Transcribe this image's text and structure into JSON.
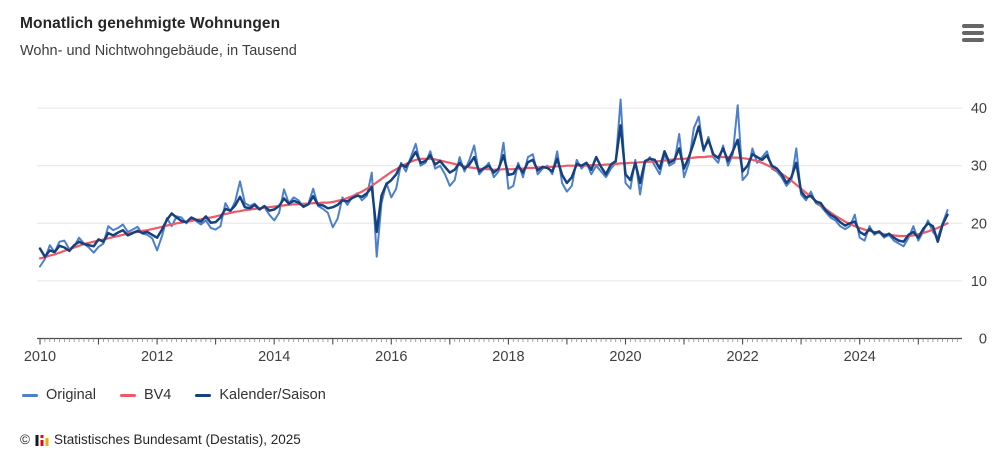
{
  "header": {
    "title": "Monatlich genehmigte Wohnungen",
    "subtitle": "Wohn- und Nichtwohngebäude, in Tausend"
  },
  "menu": {
    "icon": "hamburger-menu-icon",
    "tooltip": "Chart context menu"
  },
  "footer": {
    "copyright": "©",
    "credit": "Statistisches Bundesamt (Destatis), 2025",
    "logo_colors": {
      "black": "#1a1a1a",
      "red": "#e30613",
      "gold": "#f0ab00"
    }
  },
  "colors": {
    "grid": "#e6e6e6",
    "axis": "#4d4d4d",
    "tick_minor": "#8c8c8c",
    "label": "#404040"
  },
  "chart_data": {
    "type": "line",
    "title": "Monatlich genehmigte Wohnungen",
    "subtitle": "Wohn- und Nichtwohngebäude, in Tausend",
    "x_unit": "month",
    "x_start": "2010-01",
    "x_end": "2025-07",
    "x_tick_labels": [
      "2010",
      "2012",
      "2014",
      "2016",
      "2018",
      "2020",
      "2022",
      "2024"
    ],
    "yticks": [
      0,
      10,
      20,
      30,
      40
    ],
    "ylim": [
      0,
      43
    ],
    "grid": true,
    "legend_position": "bottom-left",
    "y_axis_side": "right",
    "series": [
      {
        "name": "Original",
        "color": "#4d80cc",
        "values": [
          12.5,
          13.8,
          16.2,
          15.0,
          16.8,
          17.0,
          15.5,
          16.0,
          17.5,
          16.5,
          15.8,
          14.9,
          15.9,
          16.5,
          19.5,
          18.8,
          19.2,
          19.8,
          18.5,
          18.9,
          19.4,
          18.2,
          18.0,
          17.4,
          15.3,
          17.8,
          20.9,
          19.5,
          21.2,
          21.0,
          20.0,
          20.8,
          20.4,
          19.8,
          20.5,
          19.2,
          18.9,
          19.5,
          23.5,
          22.0,
          23.8,
          27.3,
          23.5,
          23.0,
          23.4,
          22.5,
          22.8,
          21.5,
          20.5,
          21.8,
          25.9,
          23.5,
          24.5,
          24.0,
          22.8,
          23.4,
          26.0,
          23.0,
          22.5,
          21.8,
          19.3,
          20.8,
          24.5,
          23.2,
          24.6,
          25.2,
          24.0,
          24.8,
          28.8,
          14.2,
          23.5,
          27.0,
          24.5,
          26.0,
          30.5,
          29.0,
          31.5,
          33.8,
          30.0,
          30.5,
          32.5,
          29.5,
          30.0,
          28.5,
          26.5,
          27.5,
          31.5,
          29.0,
          31.0,
          33.5,
          28.5,
          29.5,
          30.5,
          28.0,
          29.0,
          34.0,
          26.0,
          26.5,
          30.5,
          28.0,
          31.5,
          32.0,
          28.5,
          29.5,
          30.0,
          28.5,
          32.5,
          27.0,
          25.5,
          26.5,
          31.0,
          29.5,
          30.5,
          28.5,
          30.0,
          29.0,
          28.0,
          29.5,
          30.5,
          41.5,
          27.0,
          26.0,
          31.0,
          25.0,
          30.5,
          31.5,
          30.0,
          28.5,
          32.0,
          30.0,
          30.5,
          35.5,
          28.0,
          30.5,
          36.5,
          38.5,
          32.5,
          35.0,
          31.5,
          30.5,
          33.5,
          30.0,
          32.0,
          40.5,
          27.5,
          28.5,
          33.0,
          30.5,
          31.5,
          32.5,
          29.5,
          29.0,
          28.0,
          26.5,
          27.5,
          33.0,
          25.0,
          24.0,
          25.5,
          23.5,
          23.0,
          22.0,
          21.0,
          20.5,
          19.5,
          19.0,
          19.5,
          21.5,
          17.5,
          17.0,
          19.5,
          18.0,
          18.5,
          17.5,
          18.0,
          17.0,
          16.5,
          16.0,
          17.5,
          19.5,
          17.0,
          18.5,
          20.5,
          18.5,
          17.5,
          20.0,
          22.3
        ]
      },
      {
        "name": "BV4",
        "color": "#ee5a67",
        "values": [
          13.9,
          14.1,
          14.4,
          14.6,
          14.9,
          15.2,
          15.5,
          15.8,
          16.1,
          16.4,
          16.6,
          16.8,
          17.0,
          17.2,
          17.4,
          17.6,
          17.8,
          18.0,
          18.2,
          18.4,
          18.5,
          18.7,
          18.8,
          19.0,
          19.2,
          19.4,
          19.6,
          19.8,
          20.0,
          20.1,
          20.3,
          20.4,
          20.6,
          20.7,
          20.9,
          21.0,
          21.2,
          21.4,
          21.6,
          21.8,
          22.0,
          22.1,
          22.3,
          22.4,
          22.5,
          22.6,
          22.7,
          22.8,
          22.9,
          23.0,
          23.1,
          23.2,
          23.3,
          23.3,
          23.4,
          23.4,
          23.5,
          23.5,
          23.6,
          23.6,
          23.7,
          23.9,
          24.1,
          24.4,
          24.7,
          25.1,
          25.5,
          26.0,
          26.5,
          27.1,
          27.7,
          28.3,
          28.9,
          29.4,
          29.9,
          30.3,
          30.7,
          31.0,
          31.2,
          31.2,
          31.2,
          31.1,
          30.9,
          30.7,
          30.5,
          30.3,
          30.1,
          29.9,
          29.7,
          29.6,
          29.5,
          29.4,
          29.4,
          29.3,
          29.3,
          29.4,
          29.4,
          29.4,
          29.5,
          29.5,
          29.6,
          29.6,
          29.7,
          29.7,
          29.8,
          29.8,
          29.9,
          29.9,
          30.0,
          30.0,
          30.0,
          30.0,
          30.0,
          30.1,
          30.1,
          30.1,
          30.2,
          30.2,
          30.3,
          30.4,
          30.4,
          30.5,
          30.5,
          30.6,
          30.6,
          30.7,
          30.7,
          30.8,
          30.9,
          31.0,
          31.1,
          31.2,
          31.2,
          31.3,
          31.4,
          31.5,
          31.5,
          31.6,
          31.6,
          31.6,
          31.5,
          31.5,
          31.4,
          31.4,
          31.3,
          31.2,
          31.0,
          30.8,
          30.5,
          30.1,
          29.7,
          29.2,
          28.6,
          28.0,
          27.4,
          26.7,
          26.0,
          25.3,
          24.6,
          23.9,
          23.2,
          22.5,
          21.9,
          21.3,
          20.8,
          20.3,
          19.9,
          19.5,
          19.2,
          18.9,
          18.7,
          18.5,
          18.3,
          18.1,
          18.0,
          17.9,
          17.8,
          17.8,
          17.8,
          17.9,
          18.1,
          18.3,
          18.6,
          18.9,
          19.2,
          19.6,
          20.0
        ]
      },
      {
        "name": "Kalender/Saison",
        "color": "#15417e",
        "values": [
          15.6,
          14.2,
          15.3,
          15.0,
          16.1,
          15.8,
          15.2,
          16.2,
          16.8,
          16.4,
          16.2,
          16.0,
          17.2,
          16.8,
          18.3,
          17.9,
          18.4,
          18.8,
          17.9,
          18.3,
          18.7,
          18.3,
          18.5,
          18.0,
          17.5,
          18.9,
          20.6,
          21.7,
          21.0,
          20.4,
          20.2,
          21.0,
          20.6,
          20.3,
          21.2,
          20.1,
          20.2,
          21.0,
          22.5,
          22.2,
          23.1,
          24.6,
          22.8,
          22.6,
          23.2,
          22.4,
          23.0,
          22.2,
          22.4,
          23.0,
          24.3,
          23.4,
          23.9,
          23.6,
          22.9,
          23.3,
          24.7,
          23.2,
          23.1,
          22.6,
          22.8,
          23.2,
          24.0,
          23.8,
          24.4,
          24.8,
          24.6,
          25.2,
          26.3,
          18.5,
          24.8,
          26.8,
          27.5,
          28.5,
          30.2,
          29.8,
          31.0,
          32.4,
          30.5,
          30.8,
          31.8,
          30.2,
          30.8,
          29.8,
          28.8,
          29.3,
          30.5,
          29.5,
          30.2,
          31.5,
          29.0,
          29.6,
          30.0,
          28.8,
          29.5,
          31.8,
          28.4,
          28.6,
          30.0,
          28.8,
          30.6,
          31.0,
          29.2,
          29.8,
          29.6,
          29.0,
          31.2,
          28.4,
          27.0,
          28.0,
          30.3,
          30.0,
          30.5,
          29.3,
          31.5,
          29.8,
          28.5,
          30.2,
          30.8,
          37.0,
          28.5,
          27.5,
          30.5,
          27.0,
          30.8,
          31.2,
          31.0,
          29.5,
          32.5,
          30.5,
          31.0,
          33.0,
          29.5,
          31.5,
          34.0,
          36.8,
          32.8,
          34.5,
          32.0,
          31.3,
          33.0,
          30.8,
          32.5,
          34.5,
          29.0,
          30.0,
          32.0,
          31.5,
          31.0,
          31.8,
          30.0,
          29.5,
          28.5,
          27.0,
          28.0,
          30.5,
          25.5,
          24.5,
          24.8,
          23.8,
          23.5,
          22.3,
          21.5,
          21.0,
          20.2,
          19.6,
          20.0,
          20.3,
          18.5,
          18.0,
          19.0,
          18.3,
          18.6,
          17.8,
          18.2,
          17.5,
          17.0,
          16.8,
          18.0,
          18.5,
          17.5,
          19.0,
          20.0,
          19.5,
          16.8,
          19.8,
          21.5
        ]
      }
    ]
  }
}
